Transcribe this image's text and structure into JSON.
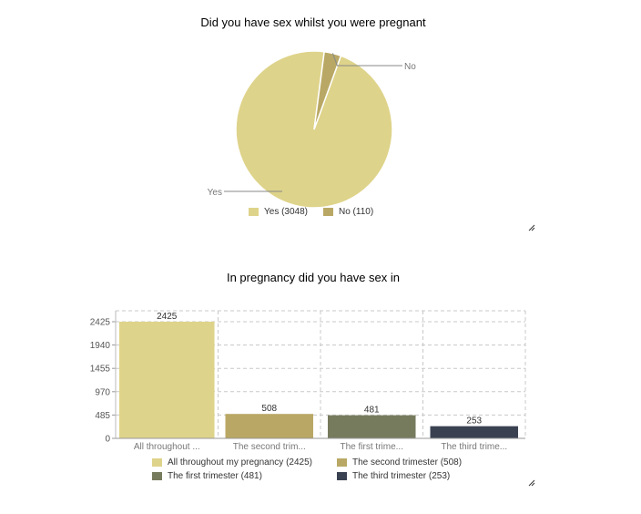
{
  "chart_data": [
    {
      "type": "pie",
      "title": "Did you have sex whilst you were pregnant",
      "categories": [
        "Yes",
        "No"
      ],
      "values": [
        3048,
        110
      ],
      "legend": [
        "Yes (3048)",
        "No (110)"
      ],
      "legend_placement": "bottom",
      "colors": [
        "#ded38a",
        "#b9a865"
      ]
    },
    {
      "type": "bar",
      "title": "In pregnancy did you have sex in",
      "categories": [
        "All throughout ...",
        "The second trim...",
        "The first trime...",
        "The third trime..."
      ],
      "values": [
        2425,
        508,
        481,
        253
      ],
      "legend": [
        "All throughout my pregnancy (2425)",
        "The second trimester (508)",
        "The first trimester (481)",
        "The third trimester (253)"
      ],
      "yticks": [
        0,
        485,
        970,
        1455,
        1940,
        2425
      ],
      "ylim": [
        0,
        2425
      ],
      "grid": true,
      "legend_placement": "bottom",
      "colors": [
        "#ded38a",
        "#b9a865",
        "#777b5e",
        "#3a4252"
      ]
    }
  ]
}
